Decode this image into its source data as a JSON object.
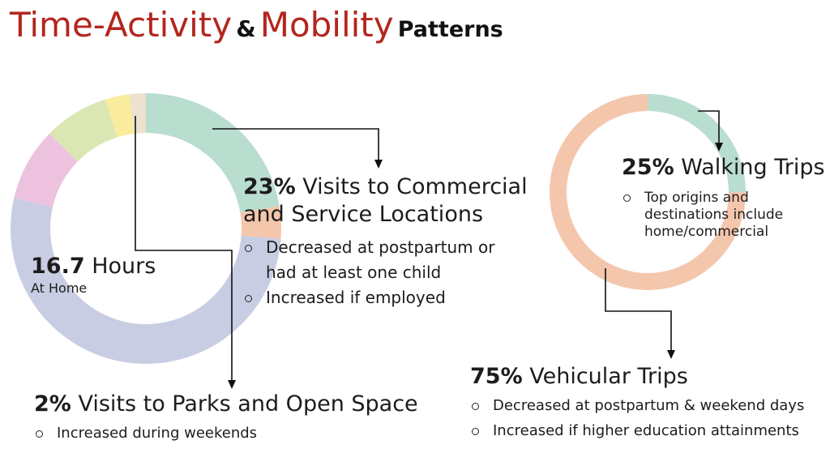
{
  "title": {
    "part1": "Time-Activity",
    "amp": "&",
    "part2": "Mobility",
    "part3": "Patterns"
  },
  "home": {
    "value": "16.7",
    "unit": "Hours",
    "label": "At Home"
  },
  "commercial": {
    "pct": "23%",
    "line1": "Visits to Commercial",
    "line2": "and Service Locations",
    "bullets": [
      "Decreased at postpartum or had at least one child",
      "Increased if employed"
    ]
  },
  "parks": {
    "pct": "2%",
    "label": "Visits to Parks and Open Space",
    "bullets": [
      "Increased during weekends"
    ]
  },
  "walking": {
    "pct": "25%",
    "label": "Walking Trips",
    "bullets": [
      "Top origins and destinations include home/commercial"
    ]
  },
  "vehicular": {
    "pct": "75%",
    "label": "Vehicular Trips",
    "bullets": [
      "Decreased at postpartum & weekend days",
      "Increased if higher education attainments"
    ]
  },
  "colors": {
    "title_red": "#b3261e",
    "commercial": "#b9ddcf",
    "orange": "#f4c6ac",
    "home": "#c9cde3",
    "pink": "#edc2df",
    "green": "#dbe7b3",
    "yellow": "#f9ec9c",
    "beige": "#ede1cf"
  },
  "chart_data": [
    {
      "type": "pie",
      "series": [
        {
          "values": [
            23,
            4,
            54,
            9,
            8,
            3,
            2
          ]
        }
      ]
    },
    {
      "type": "pie",
      "categories": [
        "Walking Trips",
        "Vehicular Trips"
      ],
      "series": [
        {
          "values": [
            25,
            75
          ]
        }
      ]
    }
  ]
}
